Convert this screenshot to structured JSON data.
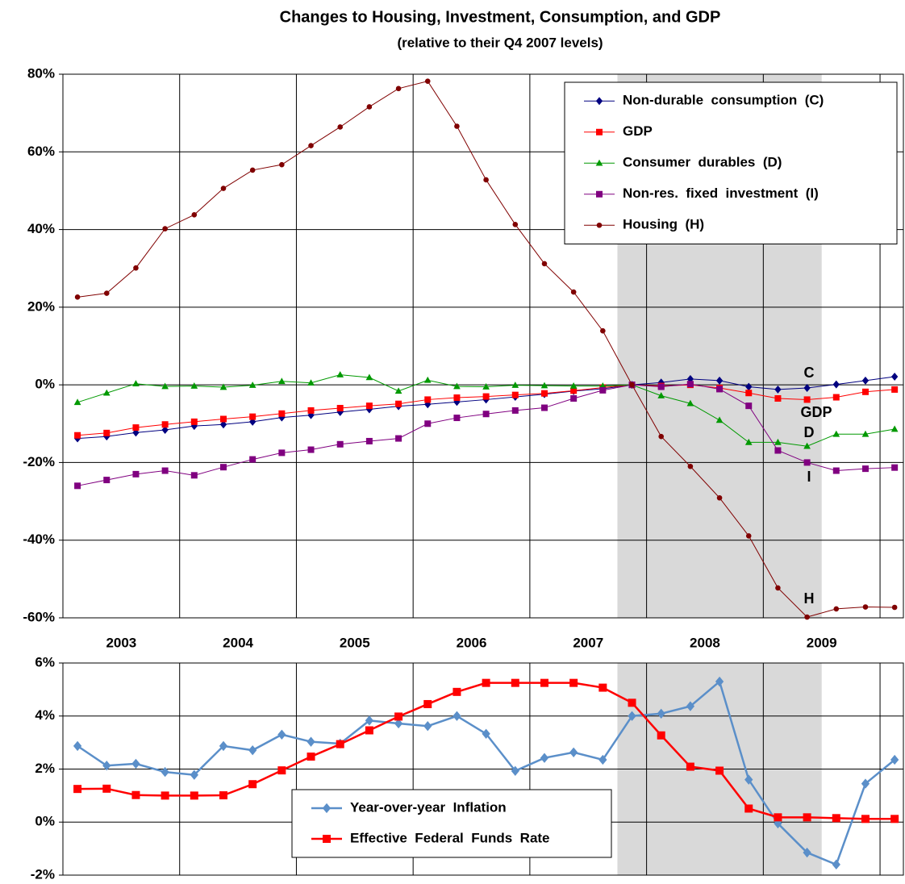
{
  "chart_data": [
    {
      "type": "line",
      "title": "Changes to Housing, Investment, Consumption, and GDP",
      "subtitle": "(relative to their Q4 2007 levels)",
      "x": [
        2003.125,
        2003.375,
        2003.625,
        2003.875,
        2004.125,
        2004.375,
        2004.625,
        2004.875,
        2005.125,
        2005.375,
        2005.625,
        2005.875,
        2006.125,
        2006.375,
        2006.625,
        2006.875,
        2007.125,
        2007.375,
        2007.625,
        2007.875,
        2008.125,
        2008.375,
        2008.625,
        2008.875,
        2009.125,
        2009.375,
        2009.625,
        2009.875,
        2010.125
      ],
      "xlim": [
        2003,
        2010.2
      ],
      "xticks": [
        {
          "value": 2003.5,
          "label": "2003"
        },
        {
          "value": 2004.5,
          "label": "2004"
        },
        {
          "value": 2005.5,
          "label": "2005"
        },
        {
          "value": 2006.5,
          "label": "2006"
        },
        {
          "value": 2007.5,
          "label": "2007"
        },
        {
          "value": 2008.5,
          "label": "2008"
        },
        {
          "value": 2009.5,
          "label": "2009"
        }
      ],
      "xgrid": [
        2004,
        2005,
        2006,
        2007,
        2008,
        2009,
        2010
      ],
      "ylim": [
        -60,
        80
      ],
      "yticks": [
        {
          "value": -60,
          "label": "-60%"
        },
        {
          "value": -40,
          "label": "-40%"
        },
        {
          "value": -20,
          "label": "-20%"
        },
        {
          "value": 0,
          "label": "0%"
        },
        {
          "value": 20,
          "label": "20%"
        },
        {
          "value": 40,
          "label": "40%"
        },
        {
          "value": 60,
          "label": "60%"
        },
        {
          "value": 80,
          "label": "80%"
        }
      ],
      "grid": true,
      "shade": [
        2007.75,
        2009.5
      ],
      "shade_color": "#d9d9d9",
      "legend": "upper right",
      "series": [
        {
          "name": "Non-durable  consumption  (C)",
          "color": "#000080",
          "marker": "diamond",
          "values": [
            -13.8,
            -13.3,
            -12.3,
            -11.6,
            -10.6,
            -10.2,
            -9.5,
            -8.4,
            -7.8,
            -7.0,
            -6.3,
            -5.5,
            -5.0,
            -4.4,
            -3.8,
            -3.1,
            -2.4,
            -1.6,
            -1.0,
            0,
            0.6,
            1.5,
            1.1,
            -0.5,
            -1.2,
            -0.8,
            0.1,
            1.1,
            2.1
          ]
        },
        {
          "name": "GDP",
          "color": "#ff0000",
          "marker": "square",
          "values": [
            -13.0,
            -12.4,
            -11.0,
            -10.2,
            -9.5,
            -8.8,
            -8.2,
            -7.4,
            -6.6,
            -6.0,
            -5.4,
            -4.9,
            -3.8,
            -3.3,
            -3.0,
            -2.6,
            -2.2,
            -1.5,
            -0.7,
            0,
            -0.3,
            0.0,
            -0.8,
            -2.1,
            -3.5,
            -3.8,
            -3.2,
            -1.8,
            -1.2
          ]
        },
        {
          "name": "Consumer  durables  (D)",
          "color": "#009900",
          "marker": "triangle",
          "values": [
            -4.5,
            -2.1,
            0.3,
            -0.4,
            -0.3,
            -0.6,
            -0.1,
            0.9,
            0.5,
            2.6,
            1.9,
            -1.6,
            1.2,
            -0.4,
            -0.5,
            -0.1,
            -0.2,
            -0.3,
            -0.3,
            0,
            -2.8,
            -4.8,
            -9.1,
            -14.8,
            -14.8,
            -15.8,
            -12.7,
            -12.7,
            -11.4
          ]
        },
        {
          "name": "Non-res.  fixed  investment  (I)",
          "color": "#800080",
          "marker": "square",
          "values": [
            -26.0,
            -24.5,
            -23.0,
            -22.1,
            -23.3,
            -21.2,
            -19.2,
            -17.5,
            -16.7,
            -15.3,
            -14.5,
            -13.8,
            -10.0,
            -8.5,
            -7.5,
            -6.6,
            -5.9,
            -3.5,
            -1.4,
            0,
            -0.5,
            0.2,
            -1.1,
            -5.4,
            -16.9,
            -20.0,
            -22.1,
            -21.6,
            -21.3
          ]
        },
        {
          "name": "Housing  (H)",
          "color": "#800000",
          "marker": "circle",
          "values": [
            22.6,
            23.6,
            30.1,
            40.2,
            43.8,
            50.6,
            55.3,
            56.7,
            61.6,
            66.4,
            71.6,
            76.3,
            78.2,
            66.6,
            52.8,
            41.3,
            31.2,
            23.9,
            13.9,
            0,
            -13.3,
            -21.0,
            -29.1,
            -38.9,
            -52.3,
            -59.8,
            -57.7,
            -57.2,
            -57.3
          ]
        }
      ],
      "annotations": [
        "C",
        "GDP",
        "D",
        "I",
        "H"
      ]
    },
    {
      "type": "line",
      "x": [
        2003.125,
        2003.375,
        2003.625,
        2003.875,
        2004.125,
        2004.375,
        2004.625,
        2004.875,
        2005.125,
        2005.375,
        2005.625,
        2005.875,
        2006.125,
        2006.375,
        2006.625,
        2006.875,
        2007.125,
        2007.375,
        2007.625,
        2007.875,
        2008.125,
        2008.375,
        2008.625,
        2008.875,
        2009.125,
        2009.375,
        2009.625,
        2009.875,
        2010.125
      ],
      "xlim": [
        2003,
        2010.2
      ],
      "xgrid": [
        2004,
        2005,
        2006,
        2007,
        2008,
        2009,
        2010
      ],
      "ylim": [
        -2,
        6
      ],
      "yticks": [
        {
          "value": -2,
          "label": "-2%"
        },
        {
          "value": 0,
          "label": "0%"
        },
        {
          "value": 2,
          "label": "2%"
        },
        {
          "value": 4,
          "label": "4%"
        },
        {
          "value": 6,
          "label": "6%"
        }
      ],
      "grid": true,
      "shade": [
        2007.75,
        2009.5
      ],
      "shade_color": "#d9d9d9",
      "legend": "lower center",
      "series": [
        {
          "name": "Year-over-year  Inflation",
          "color": "#5b8fc9",
          "marker": "diamond",
          "values": [
            2.87,
            2.13,
            2.2,
            1.89,
            1.78,
            2.87,
            2.71,
            3.3,
            3.03,
            2.96,
            3.83,
            3.72,
            3.62,
            4.0,
            3.33,
            1.93,
            2.42,
            2.63,
            2.35,
            4.0,
            4.09,
            4.37,
            5.3,
            1.6,
            -0.05,
            -1.15,
            -1.6,
            1.45,
            2.35
          ]
        },
        {
          "name": "Effective  Federal  Funds  Rate",
          "color": "#ff0000",
          "marker": "square",
          "values": [
            1.25,
            1.26,
            1.02,
            1.0,
            1.0,
            1.01,
            1.43,
            1.95,
            2.47,
            2.94,
            3.46,
            3.98,
            4.45,
            4.91,
            5.25,
            5.25,
            5.25,
            5.25,
            5.07,
            4.5,
            3.27,
            2.09,
            1.94,
            0.51,
            0.18,
            0.18,
            0.15,
            0.12,
            0.12
          ]
        }
      ]
    }
  ]
}
